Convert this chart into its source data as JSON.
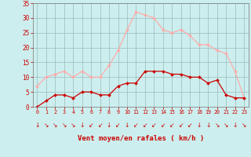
{
  "hours": [
    0,
    1,
    2,
    3,
    4,
    5,
    6,
    7,
    8,
    9,
    10,
    11,
    12,
    13,
    14,
    15,
    16,
    17,
    18,
    19,
    20,
    21,
    22,
    23
  ],
  "wind_avg": [
    0,
    2,
    4,
    4,
    3,
    5,
    5,
    4,
    4,
    7,
    8,
    8,
    12,
    12,
    12,
    11,
    11,
    10,
    10,
    8,
    9,
    4,
    3,
    3
  ],
  "wind_gust": [
    7,
    10,
    11,
    12,
    10,
    12,
    10,
    10,
    14,
    19,
    26,
    32,
    31,
    30,
    26,
    25,
    26,
    24,
    21,
    21,
    19,
    18,
    12,
    3
  ],
  "color_avg": "#cc0000",
  "color_gust": "#ffaaaa",
  "bg_color": "#cceeee",
  "grid_color": "#99bbbb",
  "xlabel": "Vent moyen/en rafales ( km/h )",
  "xlabel_color": "#cc0000",
  "tick_color": "#cc0000",
  "axis_color": "#888888",
  "ylim": [
    0,
    35
  ],
  "yticks": [
    0,
    5,
    10,
    15,
    20,
    25,
    30,
    35
  ],
  "xlim": [
    -0.5,
    23.5
  ]
}
